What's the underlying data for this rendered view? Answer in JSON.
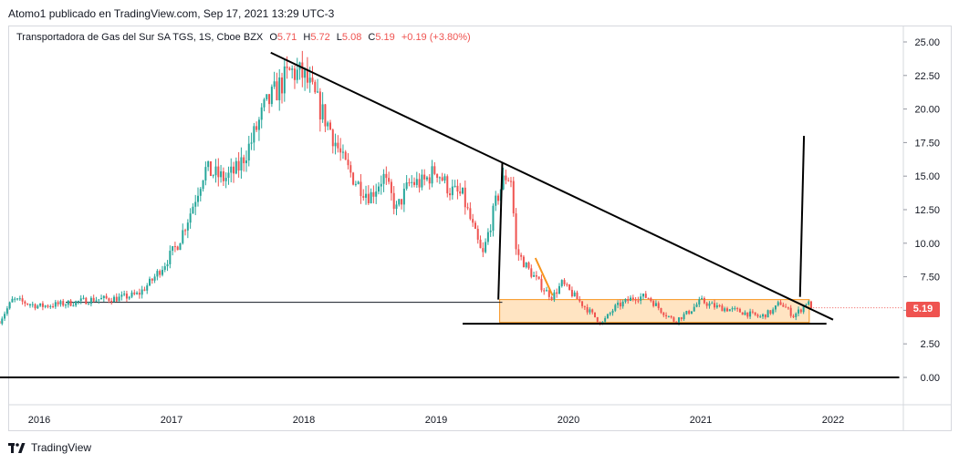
{
  "caption": "Atomo1 publicado en TradingView.com, Sep 17, 2021 13:29 UTC-3",
  "legend": {
    "instrument": "Transportadora de Gas del Sur SA TGS, 1S, Cboe BZX",
    "o_label": "O",
    "o_value": "5.71",
    "h_label": "H",
    "h_value": "5.72",
    "l_label": "L",
    "l_value": "5.08",
    "c_label": "C",
    "c_value": "5.19",
    "change": "+0.19 (+3.80%)"
  },
  "brand": "TradingView",
  "price_tag": "5.19",
  "colors": {
    "up": "#26a69a",
    "down": "#ef5350",
    "box_fill": "#ffd8a8",
    "box_stroke": "#f7941d"
  },
  "chart_data": {
    "type": "candlestick",
    "title": "",
    "x_ticks": [
      "2016",
      "2017",
      "2018",
      "2019",
      "2020",
      "2021",
      "2022"
    ],
    "y_ticks": [
      "25.00",
      "22.50",
      "20.00",
      "17.50",
      "15.00",
      "12.50",
      "10.00",
      "7.50",
      "5.00",
      "2.50",
      "0.00"
    ],
    "ylim": [
      -2,
      26
    ],
    "xlim": [
      2015.7,
      2022.5
    ],
    "last_price": 5.19,
    "path": [
      [
        2015.7,
        4.2
      ],
      [
        2015.8,
        5.8
      ],
      [
        2016.0,
        5.3
      ],
      [
        2016.2,
        5.5
      ],
      [
        2016.4,
        5.8
      ],
      [
        2016.6,
        5.9
      ],
      [
        2016.75,
        6.2
      ],
      [
        2016.85,
        7.2
      ],
      [
        2016.95,
        8.5
      ],
      [
        2017.05,
        10.0
      ],
      [
        2017.15,
        12.5
      ],
      [
        2017.25,
        15.5
      ],
      [
        2017.4,
        14.8
      ],
      [
        2017.5,
        15.5
      ],
      [
        2017.6,
        17.5
      ],
      [
        2017.7,
        20.0
      ],
      [
        2017.8,
        21.5
      ],
      [
        2017.9,
        22.8
      ],
      [
        2018.0,
        22.5
      ],
      [
        2018.1,
        20.5
      ],
      [
        2018.2,
        18.5
      ],
      [
        2018.3,
        16.0
      ],
      [
        2018.4,
        14.5
      ],
      [
        2018.5,
        13.5
      ],
      [
        2018.6,
        15.0
      ],
      [
        2018.7,
        12.5
      ],
      [
        2018.8,
        14.5
      ],
      [
        2018.9,
        14.5
      ],
      [
        2019.0,
        15.5
      ],
      [
        2019.1,
        14.0
      ],
      [
        2019.2,
        13.5
      ],
      [
        2019.3,
        10.5
      ],
      [
        2019.35,
        9.0
      ],
      [
        2019.45,
        13.0
      ],
      [
        2019.52,
        15.0
      ],
      [
        2019.57,
        14.8
      ],
      [
        2019.6,
        9.5
      ],
      [
        2019.7,
        8.0
      ],
      [
        2019.82,
        6.5
      ],
      [
        2019.88,
        6.0
      ],
      [
        2019.95,
        7.0
      ],
      [
        2020.05,
        6.0
      ],
      [
        2020.15,
        5.0
      ],
      [
        2020.25,
        4.0
      ],
      [
        2020.35,
        5.2
      ],
      [
        2020.5,
        6.0
      ],
      [
        2020.6,
        6.0
      ],
      [
        2020.7,
        5.0
      ],
      [
        2020.8,
        4.2
      ],
      [
        2020.9,
        4.8
      ],
      [
        2021.0,
        5.7
      ],
      [
        2021.1,
        5.3
      ],
      [
        2021.3,
        4.9
      ],
      [
        2021.45,
        4.5
      ],
      [
        2021.55,
        5.0
      ],
      [
        2021.6,
        5.6
      ],
      [
        2021.7,
        4.6
      ],
      [
        2021.75,
        5.0
      ],
      [
        2021.8,
        5.6
      ],
      [
        2021.85,
        5.2
      ]
    ],
    "annotations": {
      "descending_trendline": [
        [
          2017.75,
          24.2
        ],
        [
          2022.0,
          4.3
        ]
      ],
      "upper_horizontal": [
        [
          2016.2,
          5.6
        ],
        [
          2019.5,
          5.6
        ]
      ],
      "support_line": [
        [
          2019.2,
          4.0
        ],
        [
          2021.95,
          4.0
        ]
      ],
      "zero_line": [
        [
          2015.7,
          0.0
        ],
        [
          2022.5,
          0.0
        ]
      ],
      "left_vertical": [
        [
          2019.47,
          5.8
        ],
        [
          2019.5,
          16.0
        ]
      ],
      "right_vertical": [
        [
          2021.75,
          6.0
        ],
        [
          2021.78,
          18.0
        ]
      ],
      "orange_segment": [
        [
          2019.75,
          8.9
        ],
        [
          2019.88,
          6.1
        ]
      ],
      "range_box": {
        "x0": 2019.48,
        "x1": 2021.82,
        "y0": 4.1,
        "y1": 5.8
      }
    }
  }
}
